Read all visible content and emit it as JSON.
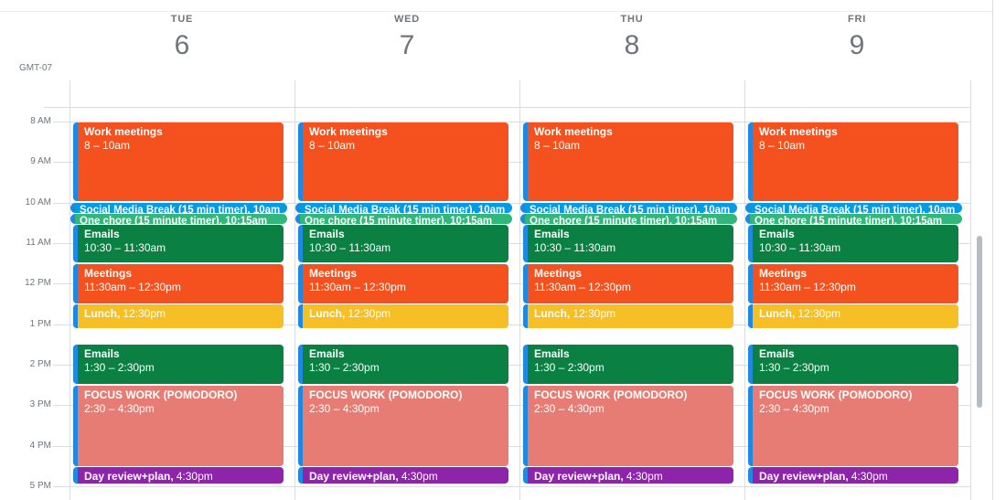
{
  "timezone_label": "GMT-07",
  "days": [
    {
      "weekday": "TUE",
      "date": "6"
    },
    {
      "weekday": "WED",
      "date": "7"
    },
    {
      "weekday": "THU",
      "date": "8"
    },
    {
      "weekday": "FRI",
      "date": "9"
    }
  ],
  "time_axis": [
    "8 AM",
    "9 AM",
    "10 AM",
    "11 AM",
    "12 PM",
    "1 PM",
    "2 PM",
    "3 PM",
    "4 PM",
    "5 PM"
  ],
  "events": [
    {
      "id": "work-meetings",
      "title": "Work meetings",
      "time": "8 – 10am",
      "color": "#F4511E",
      "layout": "block"
    },
    {
      "id": "social-media-break",
      "title": "Social Media Break (15 min timer), 10am",
      "color": "#039BE5",
      "layout": "pill"
    },
    {
      "id": "one-chore",
      "title": "One chore (15 minute timer), 10:15am",
      "color": "#33B679",
      "layout": "pill"
    },
    {
      "id": "emails-morning",
      "title": "Emails",
      "time": "10:30 – 11:30am",
      "color": "#0B8043",
      "layout": "block"
    },
    {
      "id": "meetings",
      "title": "Meetings",
      "time": "11:30am – 12:30pm",
      "color": "#F4511E",
      "layout": "block"
    },
    {
      "id": "lunch",
      "title": "Lunch,",
      "time": "12:30pm",
      "color": "#F6BF26",
      "layout": "inline"
    },
    {
      "id": "emails-afternoon",
      "title": "Emails",
      "time": "1:30 – 2:30pm",
      "color": "#0B8043",
      "layout": "block"
    },
    {
      "id": "focus-work",
      "title": "FOCUS WORK (POMODORO)",
      "time": "2:30 – 4:30pm",
      "color": "#E67C73",
      "layout": "block"
    },
    {
      "id": "day-review",
      "title": "Day review+plan,",
      "time": "4:30pm",
      "color": "#8E24AA",
      "layout": "inline"
    }
  ],
  "colors": {
    "event_edge_strip": "#1E88E5",
    "gridline": "#DADCE0",
    "header_text": "#70757A",
    "scrollbar": "#B6BCC1"
  }
}
